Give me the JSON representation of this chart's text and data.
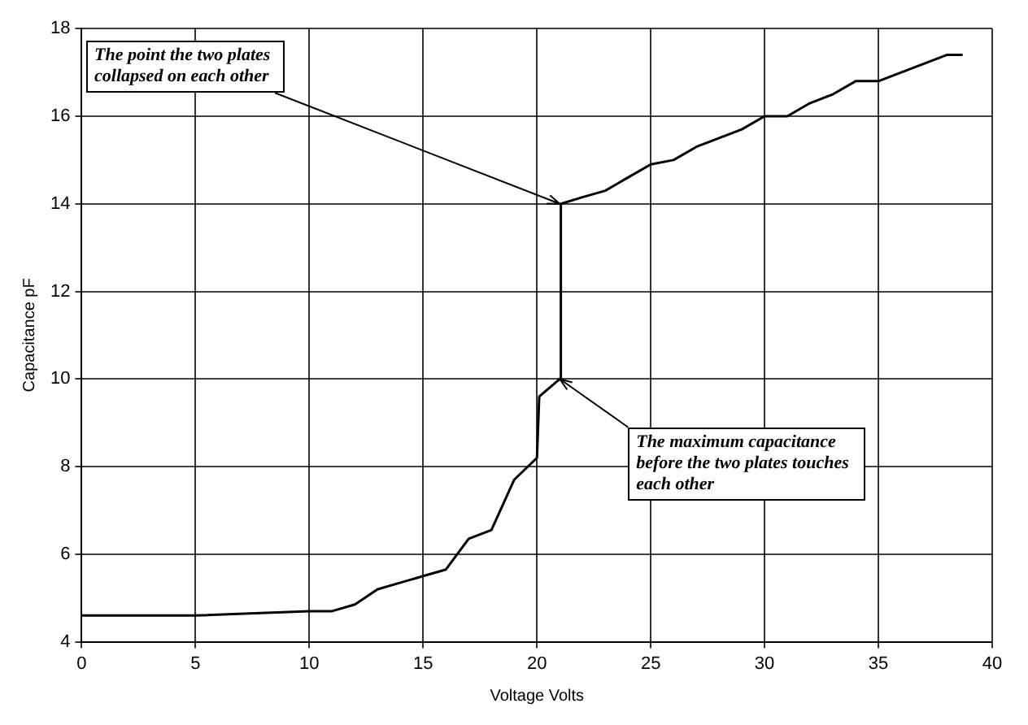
{
  "chart_data": {
    "type": "line",
    "xlabel": "Voltage Volts",
    "ylabel": "Capacitance pF",
    "x": [
      0,
      5,
      10,
      11,
      12,
      13,
      14,
      15,
      16,
      17,
      18,
      19,
      19.5,
      20,
      20.1,
      21,
      21.05,
      22,
      23,
      24,
      25,
      26,
      27,
      28,
      29,
      30,
      31,
      32,
      33,
      34,
      35,
      36,
      37,
      38,
      38.7
    ],
    "series": [
      {
        "color": "#000000",
        "values": [
          4.6,
          4.6,
          4.7,
          4.7,
          4.85,
          5.2,
          5.35,
          5.5,
          5.65,
          6.35,
          6.55,
          7.7,
          7.95,
          8.2,
          9.6,
          10.0,
          14.0,
          14.15,
          14.3,
          14.6,
          14.9,
          15.0,
          15.3,
          15.5,
          15.7,
          16.0,
          16.0,
          16.3,
          16.5,
          16.8,
          16.8,
          17.0,
          17.2,
          17.4,
          17.4
        ]
      }
    ],
    "xlim": [
      0,
      40
    ],
    "xticks": [
      0,
      5,
      10,
      15,
      20,
      25,
      30,
      35,
      40
    ],
    "ylim": [
      4,
      18
    ],
    "yticks": [
      4,
      6,
      8,
      10,
      12,
      14,
      16,
      18
    ],
    "grid": true,
    "line_style": "solid",
    "marker": "none",
    "annotations": [
      {
        "text": "The point the two plates collapsed on each other",
        "x": 21,
        "y": 14
      },
      {
        "text": "The maximum capacitance before the two plates touches each other",
        "x": 21,
        "y": 10
      }
    ]
  }
}
